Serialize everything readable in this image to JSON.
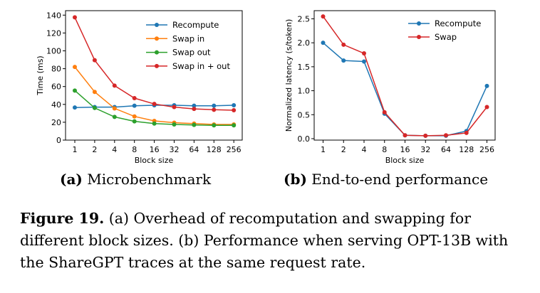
{
  "chart_data": [
    {
      "type": "line",
      "xlabel": "Block size",
      "ylabel": "Time (ms)",
      "categories": [
        "1",
        "2",
        "4",
        "8",
        "16",
        "32",
        "64",
        "128",
        "256"
      ],
      "yticks": [
        "0",
        "20",
        "40",
        "60",
        "80",
        "100",
        "120",
        "140"
      ],
      "ylim": [
        0,
        145
      ],
      "legend_position": "top-right",
      "series": [
        {
          "name": "Recompute",
          "color": "#1f77b4",
          "values": [
            36.5,
            37,
            37,
            38.5,
            39,
            39,
            38.5,
            38.5,
            39
          ]
        },
        {
          "name": "Swap in",
          "color": "#ff7f0e",
          "values": [
            82,
            54,
            35.5,
            26.5,
            21.5,
            19.5,
            18.5,
            17.5,
            17.5
          ]
        },
        {
          "name": "Swap out",
          "color": "#2ca02c",
          "values": [
            55.5,
            36,
            26,
            21,
            18.5,
            17.5,
            17,
            16.5,
            16.5
          ]
        },
        {
          "name": "Swap in + out",
          "color": "#d62728",
          "values": [
            137.5,
            89.5,
            61,
            47,
            40.5,
            37,
            35,
            34,
            33.5
          ]
        }
      ]
    },
    {
      "type": "line",
      "xlabel": "Block size",
      "ylabel": "Normalized latency (s/token)",
      "categories": [
        "1",
        "2",
        "4",
        "8",
        "16",
        "32",
        "64",
        "128",
        "256"
      ],
      "yticks": [
        "0.0",
        "0.5",
        "1.0",
        "1.5",
        "2.0",
        "2.5"
      ],
      "ylim": [
        -0.03,
        2.67
      ],
      "legend_position": "top-right",
      "series": [
        {
          "name": "Recompute",
          "color": "#1f77b4",
          "values": [
            2.0,
            1.63,
            1.61,
            0.52,
            0.07,
            0.06,
            0.06,
            0.16,
            1.1
          ]
        },
        {
          "name": "Swap",
          "color": "#d62728",
          "values": [
            2.55,
            1.96,
            1.78,
            0.55,
            0.07,
            0.06,
            0.07,
            0.12,
            0.66
          ]
        }
      ]
    }
  ],
  "subcaptions": {
    "a_label": "(a)",
    "a_text": "Microbenchmark",
    "b_label": "(b)",
    "b_text": "End-to-end performance"
  },
  "caption": {
    "label": "Figure 19.",
    "text": "(a) Overhead of recomputation and swapping for different block sizes. (b) Performance when serving OPT-13B with the ShareGPT traces at the same request rate."
  }
}
